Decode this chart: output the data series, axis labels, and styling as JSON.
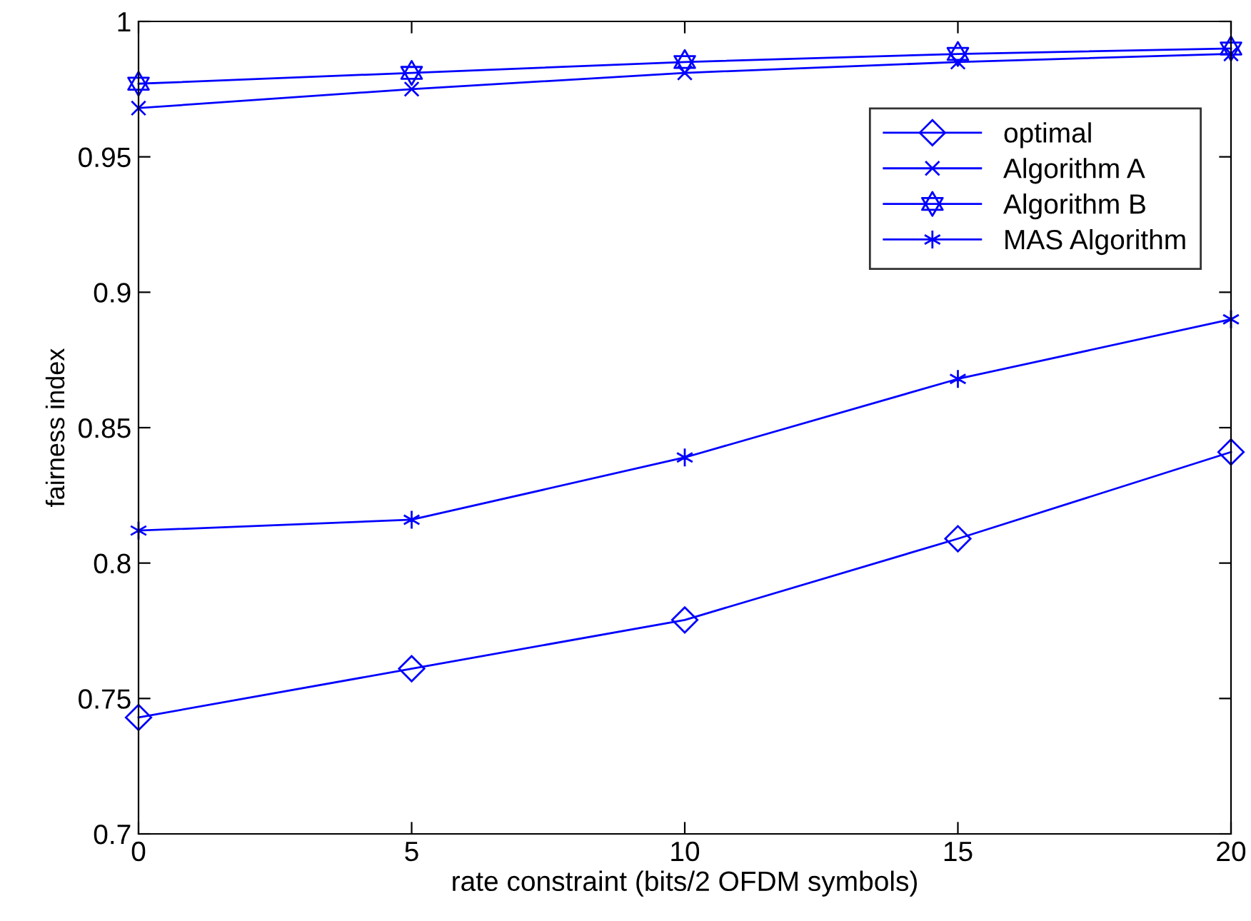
{
  "chart_data": {
    "type": "line",
    "xlabel": "rate constraint (bits/2 OFDM symbols)",
    "ylabel": "fairness index",
    "x": [
      0,
      5,
      10,
      15,
      20
    ],
    "series": [
      {
        "name": "optimal",
        "color": "#0000ff",
        "marker": "diamond",
        "values": [
          0.743,
          0.761,
          0.779,
          0.809,
          0.841
        ]
      },
      {
        "name": "Algorithm A",
        "color": "#0000ff",
        "marker": "cross",
        "values": [
          0.968,
          0.975,
          0.981,
          0.985,
          0.988
        ]
      },
      {
        "name": "Algorithm B",
        "color": "#0000ff",
        "marker": "star",
        "values": [
          0.977,
          0.981,
          0.985,
          0.988,
          0.99
        ]
      },
      {
        "name": "MAS Algorithm",
        "color": "#0000ff",
        "marker": "cross",
        "values": [
          0.812,
          0.816,
          0.839,
          0.868,
          0.89
        ]
      }
    ],
    "xlim": [
      0,
      20
    ],
    "xticks": [
      0,
      5,
      10,
      15,
      20
    ],
    "ylim": [
      0.7,
      1
    ],
    "yticks": [
      0.7,
      0.75,
      0.8,
      0.85,
      0.9,
      0.95,
      1
    ],
    "grid": false,
    "legend": "top right",
    "line_style": "solid"
  }
}
